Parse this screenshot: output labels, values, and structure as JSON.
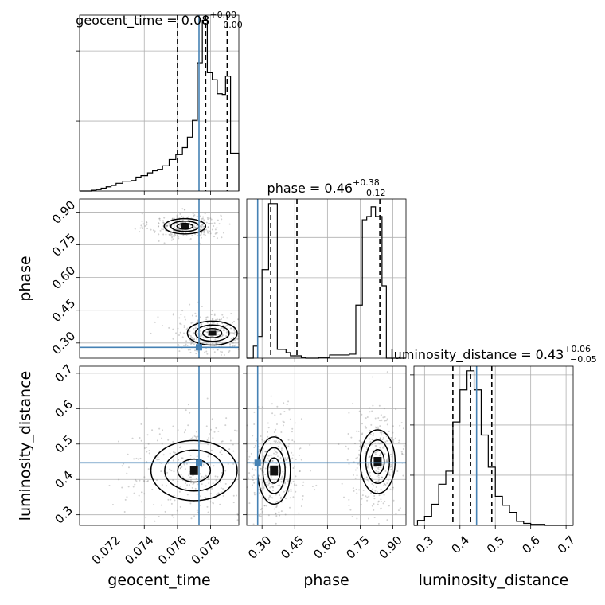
{
  "chart_data": {
    "type": "corner",
    "parameters": [
      {
        "name": "geocent_time",
        "axis_label": "geocent_time",
        "title_main": "geocent_time = 0.08",
        "title_plus": "+0.00",
        "title_minus": "−0.00",
        "range": [
          0.0701,
          0.0797
        ],
        "ticks": [
          0.072,
          0.074,
          0.076,
          0.078
        ],
        "tick_labels": [
          "0.072",
          "0.074",
          "0.076",
          "0.078"
        ],
        "truth": 0.0773,
        "quantiles": [
          0.076,
          0.0777,
          0.079
        ],
        "histogram": {
          "edges": [
            0.0701,
            0.0708,
            0.0711,
            0.0714,
            0.0717,
            0.072,
            0.0723,
            0.0727,
            0.0732,
            0.0735,
            0.0738,
            0.0742,
            0.0745,
            0.0748,
            0.0751,
            0.0755,
            0.0759,
            0.0763,
            0.0766,
            0.0769,
            0.0772,
            0.0775,
            0.0778,
            0.0781,
            0.0784,
            0.0787,
            0.0789,
            0.0792,
            0.0797
          ],
          "counts": [
            0,
            1,
            2,
            4,
            6,
            8,
            11,
            14,
            15,
            20,
            22,
            26,
            29,
            31,
            36,
            45,
            52,
            62,
            77,
            101,
            183,
            244,
            169,
            159,
            139,
            138,
            164,
            54
          ]
        }
      },
      {
        "name": "phase",
        "axis_label": "phase",
        "title_main": "phase = 0.46",
        "title_plus": "+0.38",
        "title_minus": "−0.12",
        "range": [
          0.23,
          0.96
        ],
        "ticks": [
          0.3,
          0.45,
          0.6,
          0.75,
          0.9
        ],
        "tick_labels": [
          "0.30",
          "0.45",
          "0.60",
          "0.75",
          "0.90"
        ],
        "truth": 0.28,
        "quantiles": [
          0.34,
          0.46,
          0.84
        ],
        "histogram": {
          "edges": [
            0.23,
            0.26,
            0.28,
            0.3,
            0.33,
            0.35,
            0.37,
            0.41,
            0.43,
            0.45,
            0.48,
            0.5,
            0.56,
            0.61,
            0.65,
            0.7,
            0.73,
            0.76,
            0.78,
            0.8,
            0.82,
            0.85,
            0.87,
            0.89,
            0.96
          ],
          "counts": [
            0,
            15,
            27,
            110,
            192,
            192,
            11,
            7,
            3,
            3,
            1,
            0,
            1,
            4,
            4,
            5,
            66,
            172,
            176,
            188,
            176,
            90,
            0,
            0
          ]
        }
      },
      {
        "name": "luminosity_distance",
        "axis_label": "luminosity_distance",
        "title_main": "luminosity_distance = 0.43",
        "title_plus": "+0.06",
        "title_minus": "−0.05",
        "range": [
          0.27,
          0.72
        ],
        "ticks": [
          0.3,
          0.4,
          0.5,
          0.6,
          0.7
        ],
        "tick_labels": [
          "0.3",
          "0.4",
          "0.5",
          "0.6",
          "0.7"
        ],
        "truth": 0.447,
        "quantiles": [
          0.38,
          0.43,
          0.49
        ],
        "histogram": {
          "edges": [
            0.27,
            0.28,
            0.3,
            0.32,
            0.34,
            0.36,
            0.38,
            0.4,
            0.42,
            0.44,
            0.46,
            0.48,
            0.5,
            0.52,
            0.54,
            0.56,
            0.58,
            0.6,
            0.62,
            0.64,
            0.72
          ],
          "counts": [
            0,
            5,
            9,
            21,
            41,
            54,
            103,
            135,
            154,
            135,
            90,
            58,
            29,
            20,
            13,
            4,
            2,
            1,
            1,
            0
          ]
        }
      }
    ],
    "pairs": [
      {
        "x": "geocent_time",
        "y": "phase",
        "density_clusters": [
          {
            "x": [
              0.0752,
              0.0777
            ],
            "y": [
              0.8,
              0.87
            ]
          },
          {
            "x": [
              0.0766,
              0.0796
            ],
            "y": [
              0.29,
              0.4
            ]
          }
        ]
      },
      {
        "x": "geocent_time",
        "y": "luminosity_distance",
        "density_clusters": [
          {
            "x": [
              0.0744,
              0.0796
            ],
            "y": [
              0.34,
              0.51
            ]
          }
        ]
      },
      {
        "x": "phase",
        "y": "luminosity_distance",
        "density_clusters": [
          {
            "x": [
              0.28,
              0.43
            ],
            "y": [
              0.33,
              0.52
            ]
          },
          {
            "x": [
              0.75,
              0.91
            ],
            "y": [
              0.36,
              0.54
            ]
          }
        ]
      }
    ],
    "truth_color": "#4682b4",
    "grid": true
  }
}
